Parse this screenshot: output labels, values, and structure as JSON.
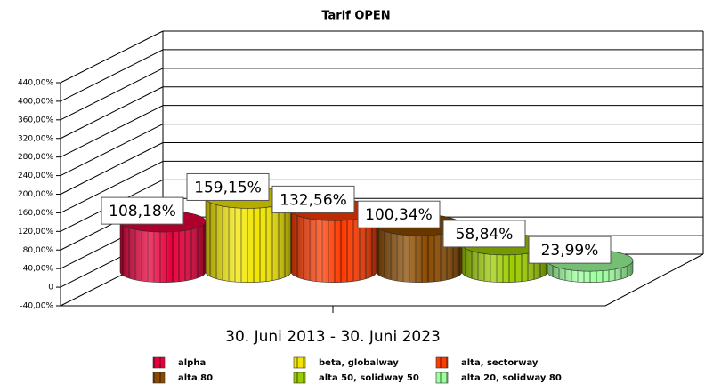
{
  "chart_data": {
    "type": "bar3d",
    "title": "Tarif OPEN",
    "categories": [
      "30. Juni 2013 - 30. Juni 2023"
    ],
    "series": [
      {
        "name": "alpha",
        "color": "#e8003c",
        "values": [
          108.18
        ],
        "value_labels": [
          "108,18%"
        ]
      },
      {
        "name": "beta, globalway",
        "color": "#f2e600",
        "values": [
          159.15
        ],
        "value_labels": [
          "159,15%"
        ]
      },
      {
        "name": "alta, sectorway",
        "color": "#ff3a00",
        "values": [
          132.56
        ],
        "value_labels": [
          "132,56%"
        ]
      },
      {
        "name": "alta 80",
        "color": "#8a4a00",
        "values": [
          100.34
        ],
        "value_labels": [
          "100,34%"
        ]
      },
      {
        "name": "alta 50, solidway 50",
        "color": "#9ccc00",
        "values": [
          58.84
        ],
        "value_labels": [
          "58,84%"
        ]
      },
      {
        "name": "alta 20, solidway 80",
        "color": "#9dff9d",
        "values": [
          23.99
        ],
        "value_labels": [
          "23,99%"
        ]
      }
    ],
    "ylim": [
      -40,
      440
    ],
    "yticks": [
      {
        "value": -40,
        "label": "-40,00%"
      },
      0,
      {
        "value": 40,
        "label": "40,00%"
      },
      {
        "value": 80,
        "label": "80,00%"
      },
      {
        "value": 120,
        "label": "120,00%"
      },
      {
        "value": 160,
        "label": "160,00%"
      },
      {
        "value": 200,
        "label": "200,00%"
      },
      {
        "value": 240,
        "label": "240,00%"
      },
      {
        "value": 280,
        "label": "280,00%"
      },
      {
        "value": 320,
        "label": "320,00%"
      },
      {
        "value": 360,
        "label": "360,00%"
      },
      {
        "value": 400,
        "label": "400,00%"
      },
      {
        "value": 440,
        "label": "440,00%"
      }
    ],
    "grid": true,
    "legend": "bottom"
  }
}
